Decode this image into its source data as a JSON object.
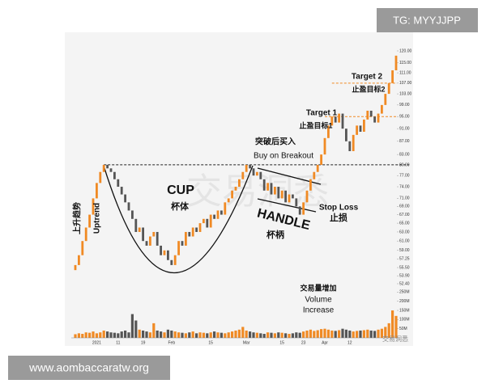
{
  "chart_data": {
    "type": "candlestick",
    "watermark": "交易洞悉",
    "categories": [
      null,
      null,
      null,
      null,
      null,
      null,
      "2021",
      null,
      null,
      null,
      null,
      null,
      "11",
      null,
      null,
      null,
      null,
      null,
      null,
      "19",
      null,
      null,
      null,
      null,
      null,
      null,
      null,
      "Feb",
      null,
      null,
      null,
      null,
      null,
      null,
      null,
      null,
      null,
      null,
      "15",
      null,
      null,
      null,
      null,
      null,
      null,
      null,
      null,
      null,
      "Mar",
      null,
      null,
      null,
      null,
      null,
      null,
      null,
      null,
      null,
      "15",
      null,
      null,
      null,
      null,
      null,
      "23",
      null,
      null,
      null,
      null,
      null,
      "Apr",
      null,
      null,
      null,
      null,
      null,
      null,
      "12",
      null,
      null,
      null,
      null,
      null,
      null,
      null,
      null,
      null,
      null,
      null,
      null,
      null
    ],
    "open": [
      55,
      56,
      58,
      61,
      64,
      67,
      71,
      75,
      78,
      80,
      79,
      78,
      76,
      74,
      72,
      70,
      68,
      66,
      63,
      64,
      61,
      60,
      62,
      63,
      60,
      58,
      59,
      57,
      56,
      58,
      61,
      60,
      63,
      62,
      64,
      63,
      65,
      66,
      64,
      67,
      66,
      68,
      67,
      70,
      71,
      73,
      74,
      76,
      78,
      80,
      79,
      77,
      78,
      76,
      73,
      75,
      72,
      74,
      71,
      73,
      70,
      72,
      71,
      69,
      67,
      70,
      73,
      76,
      78,
      80,
      83,
      88,
      92,
      95,
      93,
      96,
      91,
      87,
      84,
      89,
      92,
      90,
      94,
      97,
      95,
      93,
      96,
      99,
      103,
      107,
      112
    ],
    "close": [
      56,
      58,
      61,
      64,
      67,
      71,
      75,
      78,
      80,
      79,
      78,
      76,
      74,
      72,
      70,
      68,
      66,
      63,
      64,
      61,
      60,
      62,
      63,
      60,
      58,
      59,
      57,
      56,
      58,
      61,
      60,
      63,
      62,
      64,
      63,
      65,
      66,
      64,
      67,
      66,
      68,
      67,
      70,
      71,
      73,
      74,
      76,
      78,
      80,
      79,
      77,
      78,
      76,
      73,
      75,
      72,
      74,
      71,
      73,
      70,
      72,
      71,
      69,
      67,
      70,
      73,
      76,
      78,
      80,
      83,
      88,
      92,
      95,
      93,
      96,
      91,
      87,
      84,
      89,
      92,
      90,
      94,
      97,
      95,
      93,
      96,
      99,
      103,
      107,
      112,
      118
    ],
    "volume": [
      20,
      25,
      22,
      30,
      28,
      35,
      25,
      30,
      40,
      35,
      30,
      28,
      25,
      35,
      40,
      30,
      130,
      95,
      45,
      40,
      35,
      30,
      80,
      40,
      35,
      30,
      45,
      40,
      35,
      30,
      28,
      25,
      30,
      35,
      25,
      30,
      28,
      25,
      30,
      35,
      30,
      28,
      25,
      30,
      35,
      40,
      45,
      60,
      40,
      35,
      30,
      28,
      25,
      22,
      30,
      28,
      25,
      30,
      28,
      25,
      22,
      25,
      30,
      28,
      35,
      40,
      45,
      38,
      42,
      48,
      50,
      45,
      40,
      38,
      42,
      50,
      45,
      40,
      35,
      38,
      40,
      42,
      45,
      40,
      38,
      45,
      50,
      60,
      80,
      150,
      120
    ],
    "up_color": "#f08a24",
    "down_color": "#555555",
    "log_scale": true,
    "ylim": [
      52.4,
      120
    ],
    "yticks": [
      {
        "value": 120,
        "label": "120.00"
      },
      {
        "value": 115,
        "label": "115.00"
      },
      {
        "value": 111,
        "label": "111.00"
      },
      {
        "value": 107,
        "label": "107.00"
      },
      {
        "value": 103,
        "label": "103.00"
      },
      {
        "value": 99,
        "label": "99.00"
      },
      {
        "value": 95,
        "label": "95.00"
      },
      {
        "value": 91,
        "label": "91.00"
      },
      {
        "value": 87,
        "label": "87.00"
      },
      {
        "value": 83,
        "label": "83.00"
      },
      {
        "value": 80,
        "label": "80.00"
      },
      {
        "value": 77,
        "label": "77.00"
      },
      {
        "value": 74,
        "label": "74.00"
      },
      {
        "value": 71,
        "label": "71.00"
      },
      {
        "value": 69,
        "label": "69.00"
      },
      {
        "value": 67,
        "label": "67.00"
      },
      {
        "value": 65,
        "label": "65.00"
      },
      {
        "value": 63,
        "label": "63.00"
      },
      {
        "value": 61,
        "label": "61.00"
      },
      {
        "value": 59,
        "label": "59.00"
      },
      57.25,
      {
        "value": 55.5,
        "label": "55.50"
      },
      {
        "value": 53.9,
        "label": "53.90"
      },
      {
        "value": 52.4,
        "label": "52.40"
      }
    ],
    "volume_ylim": [
      0,
      265
    ],
    "volume_yticks": [
      {
        "value": 250,
        "label": "250M"
      },
      {
        "value": 200,
        "label": "200M"
      },
      {
        "value": 150,
        "label": "150M"
      },
      {
        "value": 100,
        "label": "100M"
      },
      {
        "value": 50,
        "label": "50M"
      }
    ],
    "levels": [
      80,
      95,
      107
    ],
    "level_colors": [
      "#222222",
      "#f08a24",
      "#f08a24"
    ],
    "annotations": {
      "breakout_zh": "突破后买入",
      "breakout_en": "Buy on Breakout",
      "target2_en": "Target 2",
      "target2_zh": "止盈目标2",
      "target1_en": "Target 1",
      "target1_zh": "止盈目标1",
      "cup_en": "CUP",
      "cup_zh": "杯体",
      "handle_en": "HANDLE",
      "handle_zh": "杯柄",
      "stop_en": "Stop Loss",
      "stop_zh": "止损",
      "uptrend_zh": "上升趋势",
      "uptrend_en": "Uptrend",
      "volume_zh": "交易量增加",
      "volume_en1": "Volume",
      "volume_en2": "Increase"
    }
  },
  "overlays": {
    "top": "TG: MYYJJPP",
    "bottom": "www.aombaccaratw.org"
  }
}
